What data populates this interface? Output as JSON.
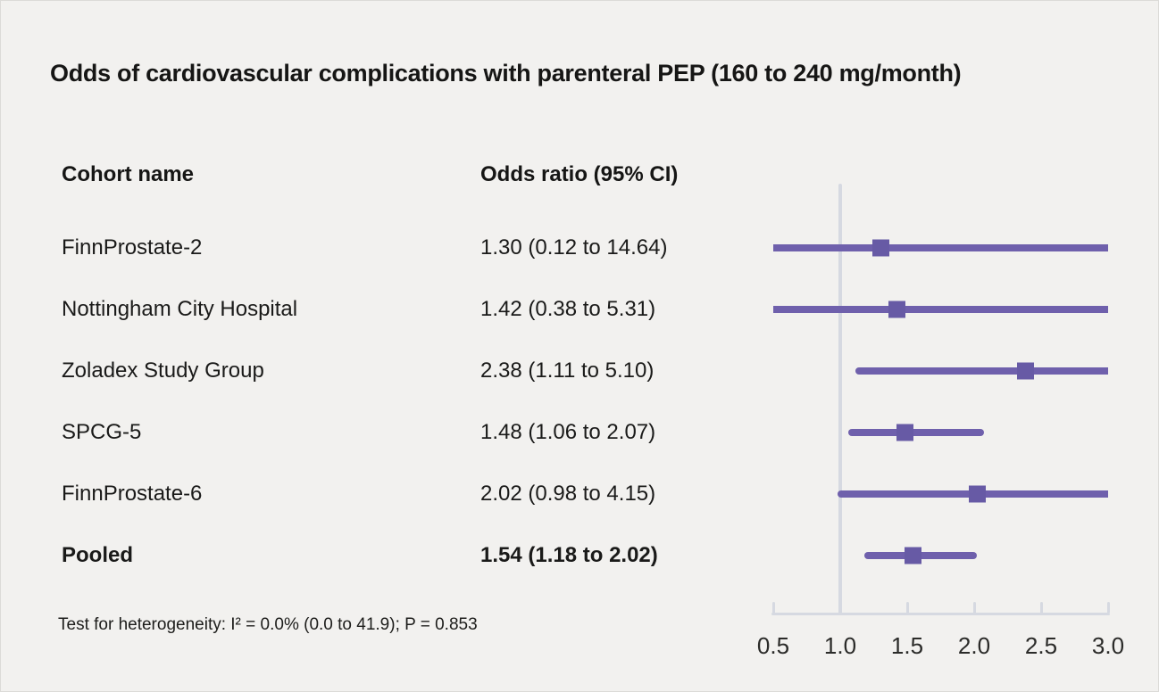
{
  "title": "Odds of cardiovascular complications with parenteral PEP (160 to 240 mg/month)",
  "columns": {
    "cohort": "Cohort name",
    "odds_ratio": "Odds ratio (95% CI)"
  },
  "footnote": "Test for heterogeneity: I² = 0.0% (0.0 to 41.9); P = 0.853",
  "chart_data": {
    "type": "forest",
    "title": "Odds of cardiovascular complications with parenteral PEP (160 to 240 mg/month)",
    "x_axis": {
      "scale": "linear",
      "range": [
        0.5,
        3.0
      ],
      "reference_line": 1.0,
      "ticks": [
        {
          "value": 0.5,
          "label": "0.5"
        },
        {
          "value": 1.0,
          "label": "1.0"
        },
        {
          "value": 1.5,
          "label": "1.5"
        },
        {
          "value": 2.0,
          "label": "2.0"
        },
        {
          "value": 2.5,
          "label": "2.5"
        },
        {
          "value": 3.0,
          "label": "3.0"
        }
      ]
    },
    "rows": [
      {
        "name": "FinnProstate-2",
        "estimate": 1.3,
        "lower": 0.12,
        "upper": 14.64,
        "or_ci": "1.30 (0.12 to 14.64)",
        "bold": false
      },
      {
        "name": "Nottingham City Hospital",
        "estimate": 1.42,
        "lower": 0.38,
        "upper": 5.31,
        "or_ci": "1.42 (0.38 to 5.31)",
        "bold": false
      },
      {
        "name": "Zoladex Study Group",
        "estimate": 2.38,
        "lower": 1.11,
        "upper": 5.1,
        "or_ci": "2.38 (1.11 to 5.10)",
        "bold": false
      },
      {
        "name": "SPCG-5",
        "estimate": 1.48,
        "lower": 1.06,
        "upper": 2.07,
        "or_ci": "1.48 (1.06 to 2.07)",
        "bold": false
      },
      {
        "name": "FinnProstate-6",
        "estimate": 2.02,
        "lower": 0.98,
        "upper": 4.15,
        "or_ci": "2.02 (0.98 to 4.15)",
        "bold": false
      },
      {
        "name": "Pooled",
        "estimate": 1.54,
        "lower": 1.18,
        "upper": 2.02,
        "or_ci": "1.54 (1.18 to 2.02)",
        "bold": true
      }
    ],
    "colors": {
      "ci_line": "#6f60ac",
      "marker": "#675aa5",
      "axis": "#d6d9e1",
      "background": "#f2f1ef",
      "text": "#1a1a19"
    }
  }
}
